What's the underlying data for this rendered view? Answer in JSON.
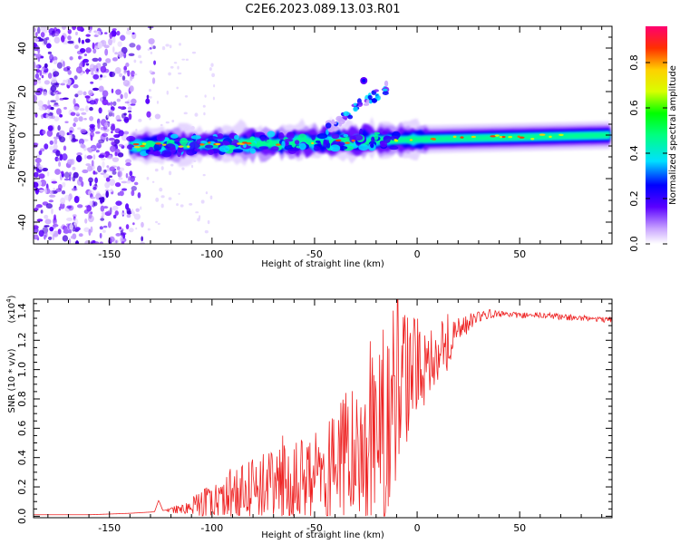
{
  "title": "C2E6.2023.089.13.03.R01",
  "colors": {
    "snr_line": "#ee2222",
    "axis": "#000000"
  },
  "chart_data": [
    {
      "type": "heatmap",
      "name": "spectrogram",
      "xlabel": "Height of straight line (km)",
      "ylabel": "Frequency (Hz)",
      "xlim": [
        -187,
        95
      ],
      "ylim": [
        -50,
        50
      ],
      "xticks": [
        -150,
        -100,
        -50,
        0,
        50
      ],
      "yticks": [
        -40,
        -20,
        0,
        20,
        40
      ],
      "xtick_labels": [
        "-150",
        "-100",
        "-50",
        "0",
        "50"
      ],
      "ytick_labels": [
        "-40",
        "-20",
        "0",
        "20",
        "40"
      ],
      "colorbar": {
        "label": "Normalized spectral amplitude",
        "range": [
          0,
          0.96
        ],
        "ticks": [
          0.0,
          0.2,
          0.4,
          0.6,
          0.8
        ],
        "tick_labels": [
          "0.0",
          "0.2",
          "0.4",
          "0.6",
          "0.8"
        ]
      },
      "features": {
        "noise_region_km": [
          -187,
          -138
        ],
        "main_band": {
          "start_km": -140,
          "end_km": 95,
          "center_hz_at_start": -5,
          "center_hz_at_end": 0
        },
        "rising_streak": {
          "start_km": -45,
          "end_km": -15,
          "start_hz": 2,
          "end_hz": 22
        },
        "spot": {
          "x_km": -26,
          "y_hz": 25
        }
      }
    },
    {
      "type": "line",
      "name": "snr",
      "xlabel": "Height of straight line (km)",
      "ylabel": "SNR (10 * v/v)",
      "scale_note": "(x10",
      "scale_exp": "4",
      "scale_close": ")",
      "xlim": [
        -187,
        95
      ],
      "ylim": [
        -0.01,
        1.48
      ],
      "xticks": [
        -150,
        -100,
        -50,
        0,
        50
      ],
      "yticks": [
        0.0,
        0.2,
        0.4,
        0.6,
        0.8,
        1.0,
        1.2,
        1.4
      ],
      "xtick_labels": [
        "-150",
        "-100",
        "-50",
        "0",
        "50"
      ],
      "ytick_labels": [
        "0.0",
        "0.2",
        "0.4",
        "0.6",
        "0.8",
        "1.0",
        "1.2",
        "1.4"
      ],
      "series": [
        {
          "name": "SNR",
          "x": [
            -187,
            -160,
            -140,
            -128,
            -126,
            -124,
            -120,
            -110,
            -105,
            -100,
            -90,
            -80,
            -70,
            -60,
            -50,
            -40,
            -30,
            -25,
            -20,
            -15,
            -10,
            -5,
            0,
            5,
            10,
            15,
            20,
            25,
            30,
            35,
            40,
            50,
            60,
            70,
            80,
            95
          ],
          "values": [
            0.01,
            0.01,
            0.02,
            0.03,
            0.11,
            0.04,
            0.04,
            0.06,
            0.09,
            0.12,
            0.15,
            0.18,
            0.2,
            0.22,
            0.26,
            0.32,
            0.42,
            0.5,
            0.6,
            0.72,
            0.85,
            0.95,
            1.02,
            1.08,
            1.14,
            1.2,
            1.26,
            1.32,
            1.36,
            1.38,
            1.38,
            1.37,
            1.37,
            1.36,
            1.35,
            1.34
          ],
          "spread": [
            0.0,
            0.0,
            0.0,
            0.0,
            0.0,
            0.0,
            0.02,
            0.05,
            0.1,
            0.14,
            0.18,
            0.22,
            0.25,
            0.3,
            0.32,
            0.4,
            0.55,
            0.62,
            0.7,
            0.75,
            0.6,
            0.45,
            0.35,
            0.3,
            0.25,
            0.2,
            0.12,
            0.06,
            0.04,
            0.03,
            0.02,
            0.02,
            0.02,
            0.02,
            0.02,
            0.02
          ]
        }
      ]
    }
  ]
}
